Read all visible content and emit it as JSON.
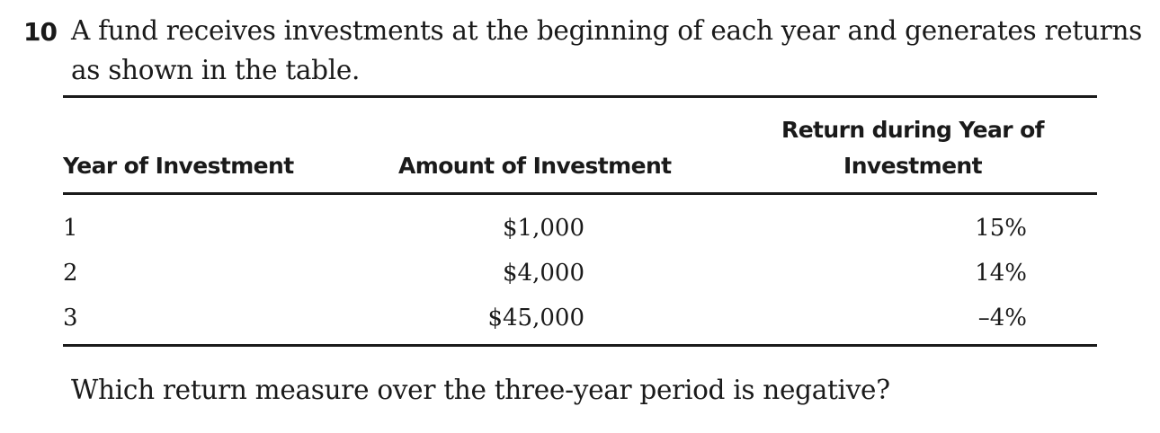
{
  "question": {
    "number": "10",
    "stem": "A fund receives investments at the beginning of each year and generates returns as shown in the table.",
    "prompt": "Which return measure over the three-year period is negative?"
  },
  "table": {
    "headers": {
      "year": "Year of Investment",
      "amount": "Amount of Investment",
      "return": "Return during Year of Investment"
    },
    "rows": [
      {
        "year": "1",
        "amount": "$1,000",
        "return": "15%"
      },
      {
        "year": "2",
        "amount": "$4,000",
        "return": "14%"
      },
      {
        "year": "3",
        "amount": "$45,000",
        "return": "–4%"
      }
    ]
  }
}
